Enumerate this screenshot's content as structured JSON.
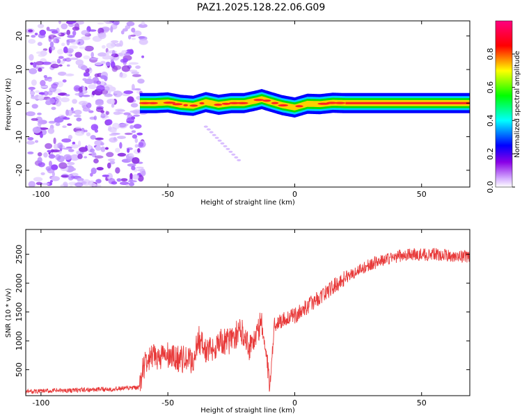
{
  "figure": {
    "title": "PAZ1.2025.128.22.06.G09"
  },
  "chart_data": [
    {
      "type": "heatmap",
      "xlabel": "Height of straight line (km)",
      "ylabel": "Frequency (Hz)",
      "xlim": [
        -106,
        69
      ],
      "ylim": [
        -25,
        24.5
      ],
      "xticks": [
        -100,
        -50,
        0,
        50
      ],
      "yticks": [
        -20,
        -10,
        0,
        10,
        20
      ],
      "grid": false,
      "noise_region": {
        "x": [
          -106,
          -61
        ],
        "y": [
          -25,
          24.5
        ]
      },
      "signal_ridge": {
        "x": [
          -61,
          -55,
          -50,
          -45,
          -40,
          -35,
          -30,
          -25,
          -20,
          -15,
          -13,
          -10,
          -5,
          0,
          5,
          10,
          15,
          20,
          30,
          40,
          50,
          60,
          69
        ],
        "y": [
          0,
          0,
          0.2,
          -0.5,
          -0.8,
          0.3,
          -0.5,
          0,
          0,
          0.8,
          1.2,
          0.5,
          -0.6,
          -1.3,
          -0.2,
          -0.3,
          0.1,
          0,
          0,
          0,
          0,
          0,
          0
        ]
      },
      "faint_branch": {
        "x": [
          -35,
          -22
        ],
        "y": [
          -7,
          -17
        ]
      },
      "colorbar": {
        "label": "Normalized spectral amplitude",
        "range": [
          0,
          1
        ],
        "ticks": [
          0.0,
          0.2,
          0.4,
          0.6,
          0.8
        ],
        "colors": [
          "#ffffff",
          "#8a00e6",
          "#0000ff",
          "#00ffff",
          "#00ff00",
          "#ffff00",
          "#ff0000",
          "#ff0080"
        ]
      }
    },
    {
      "type": "line",
      "xlabel": "Height of straight line (km)",
      "ylabel": "SNR (10 * v/v)",
      "xlim": [
        -106,
        69
      ],
      "ylim": [
        50,
        2930
      ],
      "xticks": [
        -100,
        -50,
        0,
        50
      ],
      "yticks": [
        500,
        1000,
        1500,
        2000,
        2500
      ],
      "grid": false,
      "series": [
        {
          "color": "#e83a3a",
          "x": [
            -106,
            -90,
            -75,
            -65,
            -61,
            -60,
            -58,
            -55,
            -52,
            -50,
            -48,
            -45,
            -42,
            -40,
            -38,
            -35,
            -32,
            -30,
            -28,
            -25,
            -22,
            -20,
            -18,
            -15,
            -13,
            -12,
            -11,
            -10,
            -8,
            -5,
            -3,
            0,
            5,
            10,
            15,
            20,
            25,
            30,
            35,
            40,
            45,
            50,
            55,
            60,
            65,
            69
          ],
          "y": [
            120,
            140,
            160,
            180,
            190,
            520,
            650,
            720,
            730,
            740,
            700,
            690,
            660,
            640,
            1050,
            820,
            860,
            1000,
            970,
            1020,
            1150,
            1150,
            900,
            1100,
            1350,
            940,
            700,
            150,
            1280,
            1360,
            1400,
            1430,
            1600,
            1760,
            1930,
            2100,
            2220,
            2330,
            2400,
            2460,
            2500,
            2490,
            2500,
            2480,
            2460,
            2470
          ]
        }
      ]
    }
  ]
}
